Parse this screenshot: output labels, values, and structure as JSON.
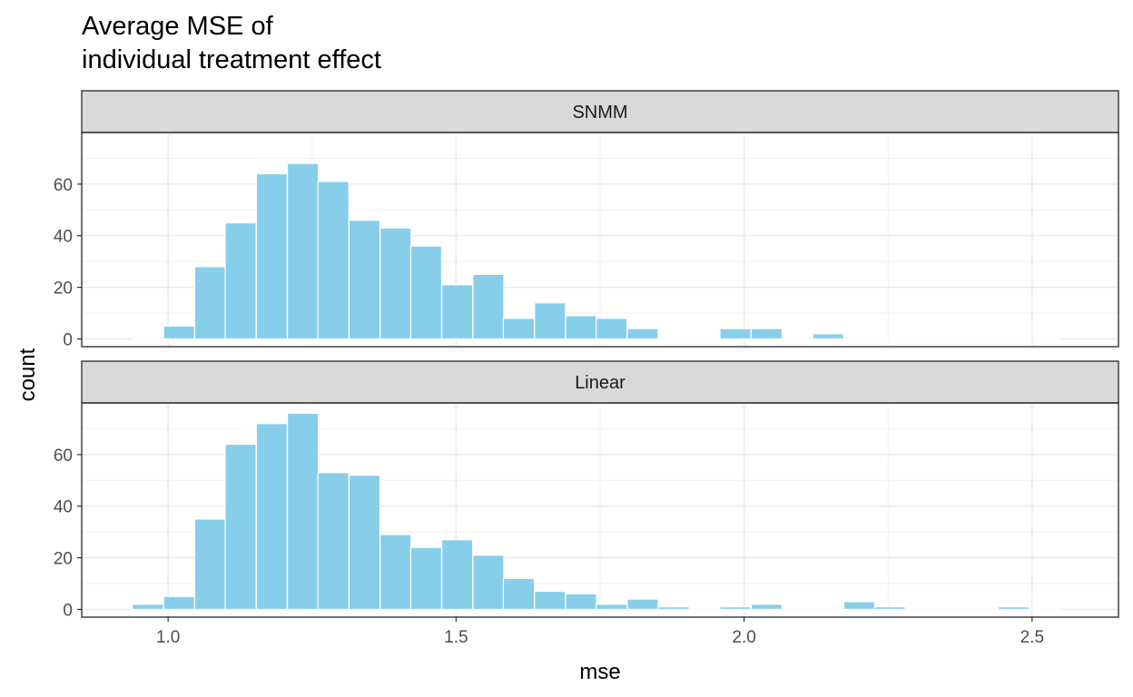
{
  "chart_data": {
    "type": "bar",
    "title_lines": [
      "Average MSE of",
      "individual treatment effect"
    ],
    "xlabel": "mse",
    "ylabel": "count",
    "xlim": [
      0.85,
      2.65
    ],
    "ylim": [
      -3,
      80
    ],
    "x_ticks": [
      1.0,
      1.5,
      2.0,
      2.5
    ],
    "x_tick_labels": [
      "1.0",
      "1.5",
      "2.0",
      "2.5"
    ],
    "y_ticks": [
      0,
      20,
      40,
      60
    ],
    "y_tick_labels": [
      "0",
      "20",
      "40",
      "60"
    ],
    "bin_width": 0.0537,
    "bin_centers": [
      0.965,
      1.019,
      1.073,
      1.126,
      1.18,
      1.234,
      1.287,
      1.341,
      1.395,
      1.448,
      1.502,
      1.556,
      1.609,
      1.663,
      1.717,
      1.77,
      1.824,
      1.878,
      1.931,
      1.985,
      2.039,
      2.092,
      2.146,
      2.2,
      2.253,
      2.307,
      2.361,
      2.414,
      2.468,
      2.522
    ],
    "fill_color": "#87CEEB",
    "panels": [
      {
        "name": "SNMM",
        "values": [
          0,
          5,
          28,
          45,
          64,
          68,
          61,
          46,
          43,
          36,
          21,
          25,
          8,
          14,
          9,
          8,
          4,
          0,
          0,
          4,
          4,
          0,
          2,
          0,
          0,
          0,
          0,
          0,
          0,
          0
        ]
      },
      {
        "name": "Linear",
        "values": [
          2,
          5,
          35,
          64,
          72,
          76,
          53,
          52,
          29,
          24,
          27,
          21,
          12,
          7,
          6,
          2,
          4,
          1,
          0,
          1,
          2,
          0,
          0,
          3,
          1,
          0,
          0,
          0,
          1,
          0
        ]
      }
    ],
    "grid": true,
    "legend": "none"
  }
}
